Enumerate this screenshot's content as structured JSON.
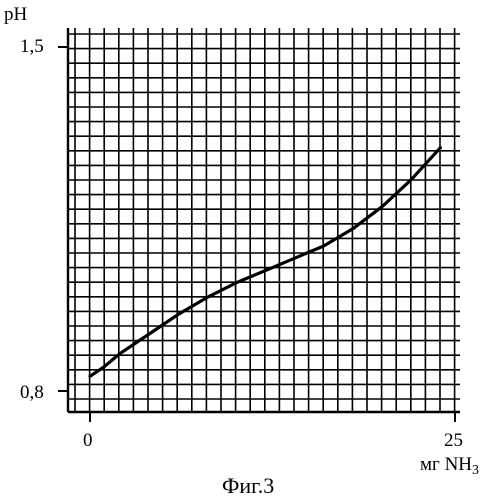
{
  "chart_data": {
    "type": "line",
    "title": "",
    "caption": "Фиг.3",
    "ylabel": "pH",
    "xlabel": "мг NH",
    "xlabel_subscript": "3",
    "xlim": [
      0,
      25
    ],
    "ylim": [
      0.8,
      1.5
    ],
    "x_tick_labels": [
      "0",
      "25"
    ],
    "y_tick_labels": [
      "1,5",
      "0,8"
    ],
    "grid": true,
    "series": [
      {
        "color": "#000000",
        "x": [
          0,
          1,
          2,
          4,
          6,
          8,
          10,
          12,
          14,
          16,
          18,
          20,
          22,
          24
        ],
        "y": [
          0.83,
          0.85,
          0.875,
          0.915,
          0.955,
          0.99,
          1.02,
          1.045,
          1.07,
          1.095,
          1.13,
          1.175,
          1.23,
          1.295
        ]
      }
    ]
  }
}
